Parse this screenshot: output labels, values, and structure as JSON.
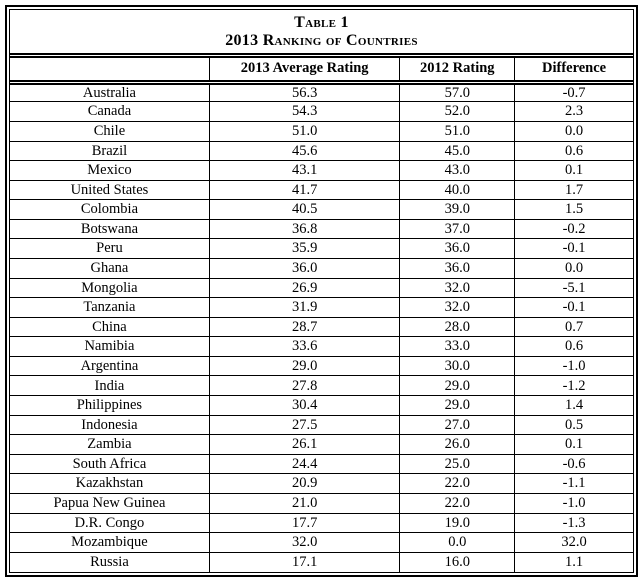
{
  "page": {
    "background_color": "#ffffff",
    "text_color": "#000000",
    "border_color": "#000000"
  },
  "table": {
    "title_line1": "Table 1",
    "title_line2": "2013 Ranking of Countries",
    "col_headers": [
      "",
      "2013 Average Rating",
      "2012 Rating",
      "Difference"
    ],
    "rows": [
      [
        "Australia",
        "56.3",
        "57.0",
        "-0.7"
      ],
      [
        "Canada",
        "54.3",
        "52.0",
        "2.3"
      ],
      [
        "Chile",
        "51.0",
        "51.0",
        "0.0"
      ],
      [
        "Brazil",
        "45.6",
        "45.0",
        "0.6"
      ],
      [
        "Mexico",
        "43.1",
        "43.0",
        "0.1"
      ],
      [
        "United States",
        "41.7",
        "40.0",
        "1.7"
      ],
      [
        "Colombia",
        "40.5",
        "39.0",
        "1.5"
      ],
      [
        "Botswana",
        "36.8",
        "37.0",
        "-0.2"
      ],
      [
        "Peru",
        "35.9",
        "36.0",
        "-0.1"
      ],
      [
        "Ghana",
        "36.0",
        "36.0",
        "0.0"
      ],
      [
        "Mongolia",
        "26.9",
        "32.0",
        "-5.1"
      ],
      [
        "Tanzania",
        "31.9",
        "32.0",
        "-0.1"
      ],
      [
        "China",
        "28.7",
        "28.0",
        "0.7"
      ],
      [
        "Namibia",
        "33.6",
        "33.0",
        "0.6"
      ],
      [
        "Argentina",
        "29.0",
        "30.0",
        "-1.0"
      ],
      [
        "India",
        "27.8",
        "29.0",
        "-1.2"
      ],
      [
        "Philippines",
        "30.4",
        "29.0",
        "1.4"
      ],
      [
        "Indonesia",
        "27.5",
        "27.0",
        "0.5"
      ],
      [
        "Zambia",
        "26.1",
        "26.0",
        "0.1"
      ],
      [
        "South Africa",
        "24.4",
        "25.0",
        "-0.6"
      ],
      [
        "Kazakhstan",
        "20.9",
        "22.0",
        "-1.1"
      ],
      [
        "Papua New Guinea",
        "21.0",
        "22.0",
        "-1.0"
      ],
      [
        "D.R. Congo",
        "17.7",
        "19.0",
        "-1.3"
      ],
      [
        "Mozambique",
        "32.0",
        "0.0",
        "32.0"
      ],
      [
        "Russia",
        "17.1",
        "16.0",
        "1.1"
      ]
    ]
  }
}
